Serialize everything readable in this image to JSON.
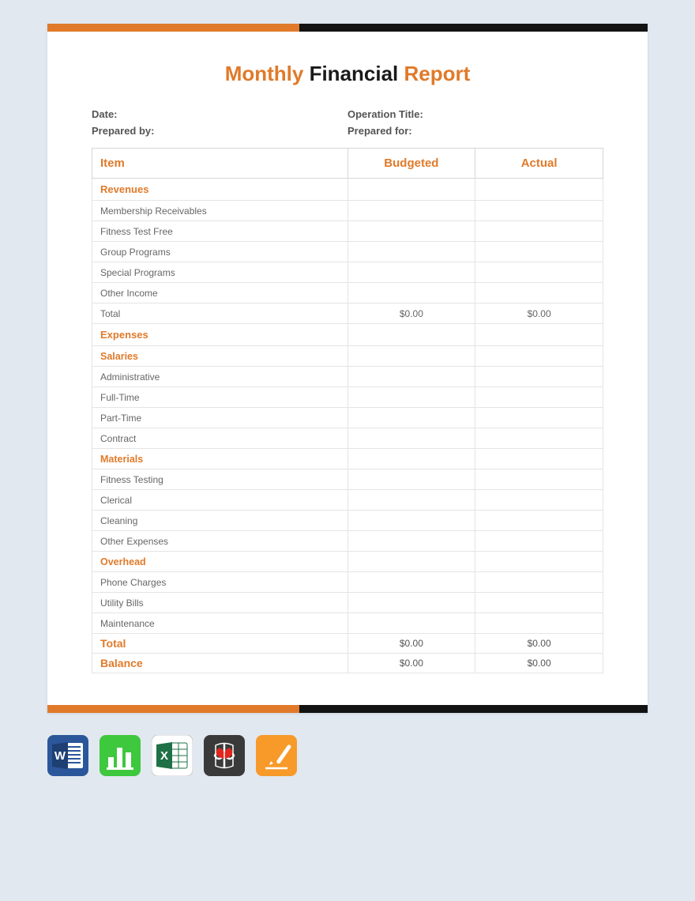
{
  "colors": {
    "page_bg": "#e1e8f0",
    "paper_bg": "#ffffff",
    "accent_orange": "#e07a2a",
    "accent_black": "#131313",
    "text_dark": "#1a1a1a",
    "text_muted": "#555555",
    "border": "#d6d6d6",
    "border_light": "#e4e4e4"
  },
  "border_bar": {
    "left_color": "#e07a2a",
    "right_color": "#131313"
  },
  "title": {
    "w1": "Monthly",
    "w2": "Financial",
    "w3": "Report"
  },
  "meta": {
    "date_label": "Date:",
    "operation_label": "Operation Title:",
    "prepared_by_label": "Prepared by:",
    "prepared_for_label": "Prepared for:"
  },
  "table": {
    "headers": {
      "item": "Item",
      "budgeted": "Budgeted",
      "actual": "Actual"
    },
    "sections": [
      {
        "label": "Revenues",
        "type": "section",
        "rows": [
          {
            "item": "Membership Receivables",
            "budgeted": "",
            "actual": ""
          },
          {
            "item": "Fitness Test Free",
            "budgeted": "",
            "actual": ""
          },
          {
            "item": "Group Programs",
            "budgeted": "",
            "actual": ""
          },
          {
            "item": "Special Programs",
            "budgeted": "",
            "actual": ""
          },
          {
            "item": "Other Income",
            "budgeted": "",
            "actual": ""
          },
          {
            "item": "Total",
            "budgeted": "$0.00",
            "actual": "$0.00",
            "is_total": true
          }
        ]
      },
      {
        "label": "Expenses",
        "type": "section",
        "subsections": [
          {
            "label": "Salaries",
            "rows": [
              {
                "item": "Administrative",
                "budgeted": "",
                "actual": ""
              },
              {
                "item": "Full-Time",
                "budgeted": "",
                "actual": ""
              },
              {
                "item": "Part-Time",
                "budgeted": "",
                "actual": ""
              },
              {
                "item": "Contract",
                "budgeted": "",
                "actual": ""
              }
            ]
          },
          {
            "label": "Materials",
            "rows": [
              {
                "item": "Fitness Testing",
                "budgeted": "",
                "actual": ""
              },
              {
                "item": "Clerical",
                "budgeted": "",
                "actual": ""
              },
              {
                "item": "Cleaning",
                "budgeted": "",
                "actual": ""
              },
              {
                "item": "Other Expenses",
                "budgeted": "",
                "actual": ""
              }
            ]
          },
          {
            "label": "Overhead",
            "rows": [
              {
                "item": "Phone Charges",
                "budgeted": "",
                "actual": ""
              },
              {
                "item": "Utility Bills",
                "budgeted": "",
                "actual": ""
              },
              {
                "item": "Maintenance",
                "budgeted": "",
                "actual": ""
              }
            ]
          }
        ]
      }
    ],
    "footer": [
      {
        "label": "Total",
        "budgeted": "$0.00",
        "actual": "$0.00"
      },
      {
        "label": "Balance",
        "budgeted": "$0.00",
        "actual": "$0.00"
      }
    ]
  },
  "icons": {
    "word": {
      "bg": "#2b579a",
      "name": "word-icon"
    },
    "numbers": {
      "bg": "#3ec83e",
      "name": "numbers-icon"
    },
    "excel": {
      "bg": "#ffffff",
      "name": "excel-icon"
    },
    "pdf": {
      "bg": "#3a3a3a",
      "name": "pdf-icon"
    },
    "pages": {
      "bg": "#f79a2a",
      "name": "pages-icon"
    }
  }
}
